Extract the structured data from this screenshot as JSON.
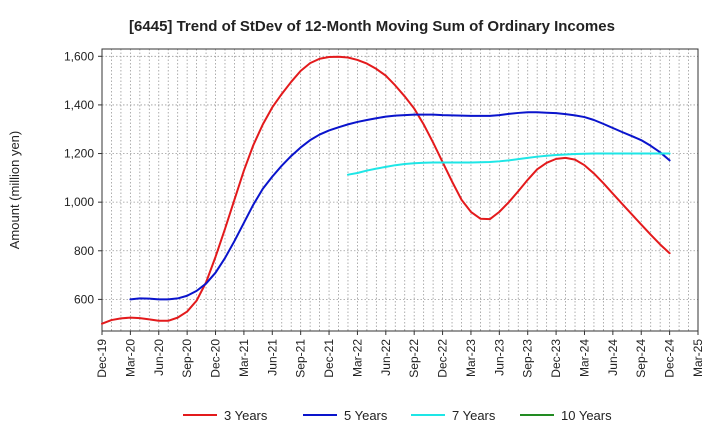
{
  "chart_data": {
    "type": "line",
    "title": "[6445]  Trend of StDev of 12-Month Moving Sum of Ordinary Incomes",
    "xlabel": "",
    "ylabel": "Amount (million yen)",
    "ylim": [
      470,
      1630
    ],
    "yticks": [
      600,
      800,
      1000,
      1200,
      1400,
      1600
    ],
    "ytick_labels": [
      "600",
      "800",
      "1,000",
      "1,200",
      "1,400",
      "1,600"
    ],
    "x_start": "Dec-19",
    "x_end": "Mar-25",
    "xtick_labels": [
      "Dec-19",
      "Mar-20",
      "Jun-20",
      "Sep-20",
      "Dec-20",
      "Mar-21",
      "Jun-21",
      "Sep-21",
      "Dec-21",
      "Mar-22",
      "Jun-22",
      "Sep-22",
      "Dec-22",
      "Mar-23",
      "Jun-23",
      "Sep-23",
      "Dec-23",
      "Mar-24",
      "Jun-24",
      "Sep-24",
      "Dec-24",
      "Mar-25"
    ],
    "grid": true,
    "legend_position": "bottom",
    "series": [
      {
        "name": "3 Years",
        "color": "#e31a1c",
        "points": [
          [
            "Dec-19",
            500
          ],
          [
            "Jan-20",
            515
          ],
          [
            "Feb-20",
            522
          ],
          [
            "Mar-20",
            525
          ],
          [
            "Apr-20",
            523
          ],
          [
            "May-20",
            518
          ],
          [
            "Jun-20",
            512
          ],
          [
            "Jul-20",
            512
          ],
          [
            "Aug-20",
            525
          ],
          [
            "Sep-20",
            550
          ],
          [
            "Oct-20",
            595
          ],
          [
            "Nov-20",
            670
          ],
          [
            "Dec-20",
            775
          ],
          [
            "Jan-21",
            890
          ],
          [
            "Feb-21",
            1010
          ],
          [
            "Mar-21",
            1130
          ],
          [
            "Apr-21",
            1235
          ],
          [
            "May-21",
            1320
          ],
          [
            "Jun-21",
            1390
          ],
          [
            "Jul-21",
            1445
          ],
          [
            "Aug-21",
            1495
          ],
          [
            "Sep-21",
            1540
          ],
          [
            "Oct-21",
            1572
          ],
          [
            "Nov-21",
            1590
          ],
          [
            "Dec-21",
            1597
          ],
          [
            "Jan-22",
            1598
          ],
          [
            "Feb-22",
            1595
          ],
          [
            "Mar-22",
            1585
          ],
          [
            "Apr-22",
            1570
          ],
          [
            "May-22",
            1548
          ],
          [
            "Jun-22",
            1520
          ],
          [
            "Jul-22",
            1480
          ],
          [
            "Aug-22",
            1435
          ],
          [
            "Sep-22",
            1385
          ],
          [
            "Oct-22",
            1320
          ],
          [
            "Nov-22",
            1245
          ],
          [
            "Dec-22",
            1165
          ],
          [
            "Jan-23",
            1085
          ],
          [
            "Feb-23",
            1010
          ],
          [
            "Mar-23",
            960
          ],
          [
            "Apr-23",
            932
          ],
          [
            "May-23",
            930
          ],
          [
            "Jun-23",
            960
          ],
          [
            "Jul-23",
            1000
          ],
          [
            "Aug-23",
            1045
          ],
          [
            "Sep-23",
            1092
          ],
          [
            "Oct-23",
            1135
          ],
          [
            "Nov-23",
            1162
          ],
          [
            "Dec-23",
            1178
          ],
          [
            "Jan-24",
            1182
          ],
          [
            "Feb-24",
            1175
          ],
          [
            "Mar-24",
            1152
          ],
          [
            "Apr-24",
            1118
          ],
          [
            "May-24",
            1078
          ],
          [
            "Jun-24",
            1035
          ],
          [
            "Jul-24",
            992
          ],
          [
            "Aug-24",
            950
          ],
          [
            "Sep-24",
            908
          ],
          [
            "Oct-24",
            866
          ],
          [
            "Nov-24",
            826
          ],
          [
            "Dec-24",
            790
          ]
        ]
      },
      {
        "name": "5 Years",
        "color": "#0a14cc",
        "points": [
          [
            "Mar-20",
            600
          ],
          [
            "Apr-20",
            604
          ],
          [
            "May-20",
            603
          ],
          [
            "Jun-20",
            600
          ],
          [
            "Jul-20",
            600
          ],
          [
            "Aug-20",
            604
          ],
          [
            "Sep-20",
            615
          ],
          [
            "Oct-20",
            635
          ],
          [
            "Nov-20",
            665
          ],
          [
            "Dec-20",
            710
          ],
          [
            "Jan-21",
            770
          ],
          [
            "Feb-21",
            840
          ],
          [
            "Mar-21",
            915
          ],
          [
            "Apr-21",
            990
          ],
          [
            "May-21",
            1055
          ],
          [
            "Jun-21",
            1105
          ],
          [
            "Jul-21",
            1150
          ],
          [
            "Aug-21",
            1190
          ],
          [
            "Sep-21",
            1225
          ],
          [
            "Oct-21",
            1255
          ],
          [
            "Nov-21",
            1278
          ],
          [
            "Dec-21",
            1295
          ],
          [
            "Jan-22",
            1308
          ],
          [
            "Feb-22",
            1320
          ],
          [
            "Mar-22",
            1330
          ],
          [
            "Apr-22",
            1338
          ],
          [
            "May-22",
            1345
          ],
          [
            "Jun-22",
            1352
          ],
          [
            "Jul-22",
            1356
          ],
          [
            "Aug-22",
            1358
          ],
          [
            "Sep-22",
            1360
          ],
          [
            "Oct-22",
            1360
          ],
          [
            "Nov-22",
            1360
          ],
          [
            "Dec-22",
            1358
          ],
          [
            "Jan-23",
            1357
          ],
          [
            "Feb-23",
            1356
          ],
          [
            "Mar-23",
            1355
          ],
          [
            "Apr-23",
            1355
          ],
          [
            "May-23",
            1355
          ],
          [
            "Jun-23",
            1358
          ],
          [
            "Jul-23",
            1363
          ],
          [
            "Aug-23",
            1367
          ],
          [
            "Sep-23",
            1370
          ],
          [
            "Oct-23",
            1370
          ],
          [
            "Nov-23",
            1368
          ],
          [
            "Dec-23",
            1366
          ],
          [
            "Jan-24",
            1362
          ],
          [
            "Feb-24",
            1357
          ],
          [
            "Mar-24",
            1350
          ],
          [
            "Apr-24",
            1338
          ],
          [
            "May-24",
            1322
          ],
          [
            "Jun-24",
            1305
          ],
          [
            "Jul-24",
            1288
          ],
          [
            "Aug-24",
            1272
          ],
          [
            "Sep-24",
            1255
          ],
          [
            "Oct-24",
            1232
          ],
          [
            "Nov-24",
            1205
          ],
          [
            "Dec-24",
            1172
          ]
        ]
      },
      {
        "name": "7 Years",
        "color": "#1ee6e6",
        "points": [
          [
            "Feb-22",
            1113
          ],
          [
            "Mar-22",
            1120
          ],
          [
            "Apr-22",
            1130
          ],
          [
            "May-22",
            1138
          ],
          [
            "Jun-22",
            1145
          ],
          [
            "Jul-22",
            1152
          ],
          [
            "Aug-22",
            1157
          ],
          [
            "Sep-22",
            1160
          ],
          [
            "Oct-22",
            1162
          ],
          [
            "Nov-22",
            1163
          ],
          [
            "Dec-22",
            1163
          ],
          [
            "Jan-23",
            1163
          ],
          [
            "Feb-23",
            1163
          ],
          [
            "Mar-23",
            1163
          ],
          [
            "Apr-23",
            1164
          ],
          [
            "May-23",
            1165
          ],
          [
            "Jun-23",
            1168
          ],
          [
            "Jul-23",
            1172
          ],
          [
            "Aug-23",
            1177
          ],
          [
            "Sep-23",
            1182
          ],
          [
            "Oct-23",
            1187
          ],
          [
            "Nov-23",
            1191
          ],
          [
            "Dec-23",
            1194
          ],
          [
            "Jan-24",
            1196
          ],
          [
            "Feb-24",
            1198
          ],
          [
            "Mar-24",
            1199
          ],
          [
            "Apr-24",
            1200
          ],
          [
            "May-24",
            1200
          ],
          [
            "Jun-24",
            1200
          ],
          [
            "Jul-24",
            1200
          ],
          [
            "Aug-24",
            1200
          ],
          [
            "Sep-24",
            1200
          ],
          [
            "Oct-24",
            1200
          ],
          [
            "Nov-24",
            1200
          ],
          [
            "Dec-24",
            1200
          ]
        ]
      },
      {
        "name": "10 Years",
        "color": "#228b22",
        "points": []
      }
    ]
  }
}
